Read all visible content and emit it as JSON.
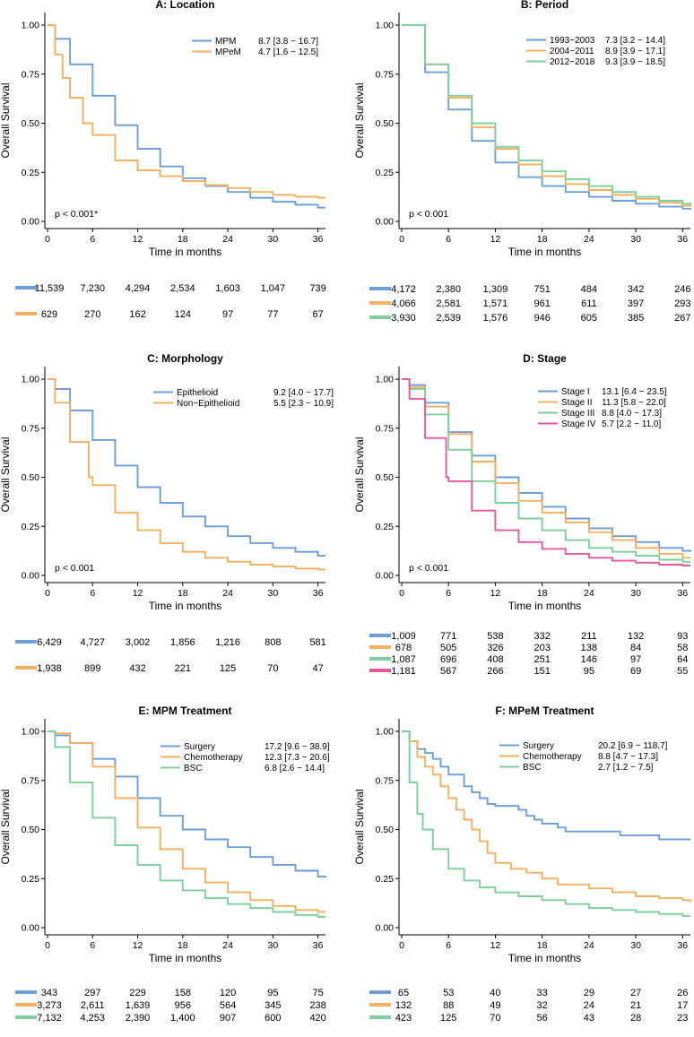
{
  "x_label": "Time in months",
  "y_label": "Overall Survival",
  "x_ticks": [
    0,
    6,
    12,
    18,
    24,
    30,
    36
  ],
  "y_ticks": [
    "0.00",
    "0.25",
    "0.50",
    "0.75",
    "1.00"
  ],
  "colors": {
    "blue": "#6f9fdb",
    "orange": "#f5b060",
    "green": "#7fcfa0",
    "pink": "#e8589e"
  },
  "chart_data": [
    {
      "type": "line",
      "title": "A:  Location",
      "pvalue": "p < 0.001*",
      "xlim": [
        0,
        37
      ],
      "ylim": [
        0,
        1
      ],
      "series": [
        {
          "name": "MPM",
          "median": "8.7  [3.8 − 16.7]",
          "color": "blue",
          "x": [
            0,
            1,
            3,
            6,
            9,
            12,
            15,
            18,
            21,
            24,
            27,
            30,
            33,
            36,
            37
          ],
          "values": [
            1.0,
            0.93,
            0.8,
            0.64,
            0.49,
            0.37,
            0.28,
            0.22,
            0.18,
            0.15,
            0.12,
            0.1,
            0.085,
            0.07,
            0.07
          ],
          "risk": [
            "11,539",
            "7,230",
            "4,294",
            "2,534",
            "1,603",
            "1,047",
            "739"
          ]
        },
        {
          "name": "MPeM",
          "median": "4.7  [1.6 − 12.5]",
          "color": "orange",
          "x": [
            0,
            1,
            2,
            3,
            4.7,
            6,
            9,
            12,
            15,
            18,
            21,
            24,
            27,
            30,
            33,
            36,
            37
          ],
          "values": [
            1.0,
            0.85,
            0.73,
            0.63,
            0.5,
            0.44,
            0.31,
            0.26,
            0.23,
            0.205,
            0.185,
            0.17,
            0.15,
            0.135,
            0.125,
            0.12,
            0.12
          ],
          "risk": [
            "629",
            "270",
            "162",
            "124",
            "97",
            "77",
            "67"
          ]
        }
      ]
    },
    {
      "type": "line",
      "title": "B:  Period",
      "pvalue": "p < 0.001",
      "xlim": [
        0,
        37
      ],
      "ylim": [
        0,
        1
      ],
      "series": [
        {
          "name": "1993−2003",
          "median": "7.3  [3.2 − 14.4]",
          "color": "blue",
          "x": [
            0,
            3,
            6,
            9,
            12,
            15,
            18,
            21,
            24,
            27,
            30,
            33,
            36,
            37
          ],
          "values": [
            1.0,
            0.76,
            0.57,
            0.41,
            0.3,
            0.225,
            0.18,
            0.15,
            0.125,
            0.105,
            0.09,
            0.075,
            0.065,
            0.06
          ],
          "risk": [
            "4,172",
            "2,380",
            "1,309",
            "751",
            "484",
            "342",
            "246"
          ]
        },
        {
          "name": "2004−2011",
          "median": "8.9  [3.9 − 17.1]",
          "color": "orange",
          "x": [
            0,
            3,
            6,
            9,
            12,
            15,
            18,
            21,
            24,
            27,
            30,
            33,
            36,
            37
          ],
          "values": [
            1.0,
            0.8,
            0.63,
            0.48,
            0.37,
            0.29,
            0.23,
            0.19,
            0.16,
            0.135,
            0.115,
            0.095,
            0.08,
            0.075
          ],
          "risk": [
            "4,066",
            "2,581",
            "1,571",
            "961",
            "611",
            "397",
            "293"
          ]
        },
        {
          "name": "2012−2018",
          "median": "9.3  [3.9 − 18.5]",
          "color": "green",
          "x": [
            0,
            3,
            6,
            9,
            12,
            15,
            18,
            21,
            24,
            27,
            30,
            33,
            36,
            37
          ],
          "values": [
            1.0,
            0.8,
            0.64,
            0.5,
            0.38,
            0.31,
            0.255,
            0.215,
            0.18,
            0.15,
            0.125,
            0.105,
            0.09,
            0.085
          ],
          "risk": [
            "3,930",
            "2,539",
            "1,576",
            "946",
            "605",
            "385",
            "267"
          ]
        }
      ]
    },
    {
      "type": "line",
      "title": "C:  Morphology",
      "pvalue": "p < 0.001",
      "xlim": [
        0,
        37
      ],
      "ylim": [
        0,
        1
      ],
      "series": [
        {
          "name": "Epithelioid",
          "median": "9.2  [4.0 − 17.7]",
          "color": "blue",
          "x": [
            0,
            1,
            3,
            6,
            9,
            12,
            15,
            18,
            21,
            24,
            27,
            30,
            33,
            36,
            37
          ],
          "values": [
            1.0,
            0.95,
            0.84,
            0.69,
            0.56,
            0.45,
            0.37,
            0.3,
            0.25,
            0.2,
            0.165,
            0.14,
            0.12,
            0.1,
            0.1
          ],
          "risk": [
            "6,429",
            "4,727",
            "3,002",
            "1,856",
            "1,216",
            "808",
            "581"
          ]
        },
        {
          "name": "Non−Epithelioid",
          "median": "5.5  [2.3 − 10.9]",
          "color": "orange",
          "x": [
            0,
            1,
            3,
            5.5,
            6,
            9,
            12,
            15,
            18,
            21,
            24,
            27,
            30,
            33,
            36,
            37
          ],
          "values": [
            1.0,
            0.88,
            0.68,
            0.5,
            0.46,
            0.32,
            0.23,
            0.165,
            0.12,
            0.09,
            0.07,
            0.055,
            0.045,
            0.035,
            0.03,
            0.03
          ],
          "risk": [
            "1,938",
            "899",
            "432",
            "221",
            "125",
            "70",
            "47"
          ]
        }
      ]
    },
    {
      "type": "line",
      "title": "D:  Stage",
      "pvalue": "p < 0.001",
      "xlim": [
        0,
        37
      ],
      "ylim": [
        0,
        1
      ],
      "series": [
        {
          "name": "Stage I",
          "median": "13.1 [6.4 − 23.5]",
          "color": "blue",
          "x": [
            0,
            1,
            3,
            6,
            9,
            12,
            15,
            18,
            21,
            24,
            27,
            30,
            33,
            36,
            37
          ],
          "values": [
            1.0,
            0.97,
            0.88,
            0.73,
            0.61,
            0.5,
            0.42,
            0.35,
            0.29,
            0.24,
            0.2,
            0.17,
            0.14,
            0.125,
            0.12
          ],
          "risk": [
            "1,009",
            "771",
            "538",
            "332",
            "211",
            "132",
            "93"
          ]
        },
        {
          "name": "Stage II",
          "median": "11.3 [5.8 − 22.0]",
          "color": "orange",
          "x": [
            0,
            1,
            3,
            6,
            9,
            12,
            15,
            18,
            21,
            24,
            27,
            30,
            33,
            36,
            37
          ],
          "values": [
            1.0,
            0.96,
            0.86,
            0.72,
            0.58,
            0.47,
            0.38,
            0.32,
            0.27,
            0.22,
            0.18,
            0.14,
            0.11,
            0.09,
            0.09
          ],
          "risk": [
            "678",
            "505",
            "326",
            "203",
            "138",
            "84",
            "58"
          ]
        },
        {
          "name": "Stage III",
          "median": "8.8 [4.0 − 17.3]",
          "color": "green",
          "x": [
            0,
            1,
            3,
            6,
            9,
            12,
            15,
            18,
            21,
            24,
            27,
            30,
            33,
            36,
            37
          ],
          "values": [
            1.0,
            0.95,
            0.82,
            0.64,
            0.48,
            0.37,
            0.29,
            0.23,
            0.18,
            0.14,
            0.12,
            0.1,
            0.08,
            0.07,
            0.07
          ],
          "risk": [
            "1,087",
            "696",
            "408",
            "251",
            "146",
            "97",
            "64"
          ]
        },
        {
          "name": "Stage IV",
          "median": "5.7 [2.2 − 11.0]",
          "color": "pink",
          "x": [
            0,
            1,
            3,
            5.7,
            6,
            9,
            12,
            15,
            18,
            21,
            24,
            27,
            30,
            33,
            36,
            37
          ],
          "values": [
            1.0,
            0.9,
            0.7,
            0.5,
            0.48,
            0.33,
            0.23,
            0.17,
            0.135,
            0.11,
            0.09,
            0.075,
            0.065,
            0.055,
            0.05,
            0.05
          ],
          "risk": [
            "1,181",
            "567",
            "266",
            "151",
            "95",
            "69",
            "55"
          ]
        }
      ]
    },
    {
      "type": "line",
      "title": "E:  MPM Treatment",
      "pvalue": "",
      "xlim": [
        0,
        37
      ],
      "ylim": [
        0,
        1
      ],
      "series": [
        {
          "name": "Surgery",
          "median": "17.2 [9.6 − 38.9]",
          "color": "blue",
          "x": [
            0,
            1,
            3,
            6,
            9,
            12,
            15,
            18,
            21,
            24,
            27,
            30,
            33,
            36,
            37
          ],
          "values": [
            1.0,
            0.98,
            0.94,
            0.86,
            0.77,
            0.66,
            0.57,
            0.5,
            0.45,
            0.41,
            0.36,
            0.32,
            0.29,
            0.26,
            0.255
          ],
          "risk": [
            "343",
            "297",
            "229",
            "158",
            "120",
            "95",
            "75"
          ]
        },
        {
          "name": "Chemotherapy",
          "median": "12.3 [7.3 − 20.6]",
          "color": "orange",
          "x": [
            0,
            1,
            3,
            6,
            9,
            12,
            15,
            18,
            21,
            24,
            27,
            30,
            33,
            36,
            37
          ],
          "values": [
            1.0,
            0.99,
            0.94,
            0.82,
            0.66,
            0.51,
            0.4,
            0.3,
            0.23,
            0.18,
            0.14,
            0.11,
            0.09,
            0.08,
            0.08
          ],
          "risk": [
            "3,273",
            "2,611",
            "1,639",
            "956",
            "564",
            "345",
            "238"
          ]
        },
        {
          "name": "BSC",
          "median": "6.8 [2.6 − 14.4]",
          "color": "green",
          "x": [
            0,
            1,
            3,
            6,
            9,
            12,
            15,
            18,
            21,
            24,
            27,
            30,
            33,
            36,
            37
          ],
          "values": [
            1.0,
            0.92,
            0.74,
            0.56,
            0.42,
            0.32,
            0.24,
            0.19,
            0.15,
            0.12,
            0.1,
            0.08,
            0.065,
            0.055,
            0.055
          ],
          "risk": [
            "7,132",
            "4,253",
            "2,390",
            "1,400",
            "907",
            "600",
            "420"
          ]
        }
      ]
    },
    {
      "type": "line",
      "title": "F:  MPeM Treatment",
      "pvalue": "",
      "xlim": [
        0,
        37
      ],
      "ylim": [
        0,
        1
      ],
      "series": [
        {
          "name": "Surgery",
          "median": "20.2 [6.9 − 118.7]",
          "color": "blue",
          "x": [
            0,
            1,
            2,
            3,
            4,
            5,
            6,
            8,
            9,
            10,
            11,
            12,
            15,
            16,
            17,
            18,
            20,
            21,
            24,
            28,
            30,
            33,
            36,
            37
          ],
          "values": [
            1.0,
            0.95,
            0.91,
            0.89,
            0.86,
            0.82,
            0.78,
            0.72,
            0.69,
            0.66,
            0.63,
            0.62,
            0.6,
            0.57,
            0.55,
            0.53,
            0.51,
            0.49,
            0.49,
            0.47,
            0.47,
            0.45,
            0.45,
            0.45
          ],
          "risk": [
            "65",
            "53",
            "40",
            "33",
            "29",
            "27",
            "26"
          ]
        },
        {
          "name": "Chemotherapy",
          "median": "8.8 [4.7 − 17.3]",
          "color": "orange",
          "x": [
            0,
            1,
            2,
            3,
            4,
            5,
            6,
            7,
            8,
            9,
            10,
            11,
            12,
            14,
            16,
            18,
            20,
            24,
            27,
            30,
            33,
            36,
            37
          ],
          "values": [
            1.0,
            0.95,
            0.87,
            0.82,
            0.78,
            0.72,
            0.66,
            0.6,
            0.55,
            0.5,
            0.44,
            0.38,
            0.33,
            0.3,
            0.28,
            0.25,
            0.22,
            0.2,
            0.18,
            0.16,
            0.15,
            0.14,
            0.13
          ],
          "risk": [
            "132",
            "88",
            "49",
            "32",
            "24",
            "21",
            "17"
          ]
        },
        {
          "name": "BSC",
          "median": "2.7 [1.2 − 7.5]",
          "color": "green",
          "x": [
            0,
            1,
            2,
            2.7,
            4,
            6,
            8,
            10,
            12,
            15,
            18,
            21,
            24,
            27,
            30,
            33,
            36,
            37
          ],
          "values": [
            1.0,
            0.74,
            0.58,
            0.5,
            0.4,
            0.3,
            0.24,
            0.205,
            0.18,
            0.16,
            0.14,
            0.12,
            0.1,
            0.09,
            0.08,
            0.07,
            0.06,
            0.06
          ],
          "risk": [
            "423",
            "125",
            "70",
            "56",
            "43",
            "28",
            "23"
          ]
        }
      ]
    }
  ]
}
